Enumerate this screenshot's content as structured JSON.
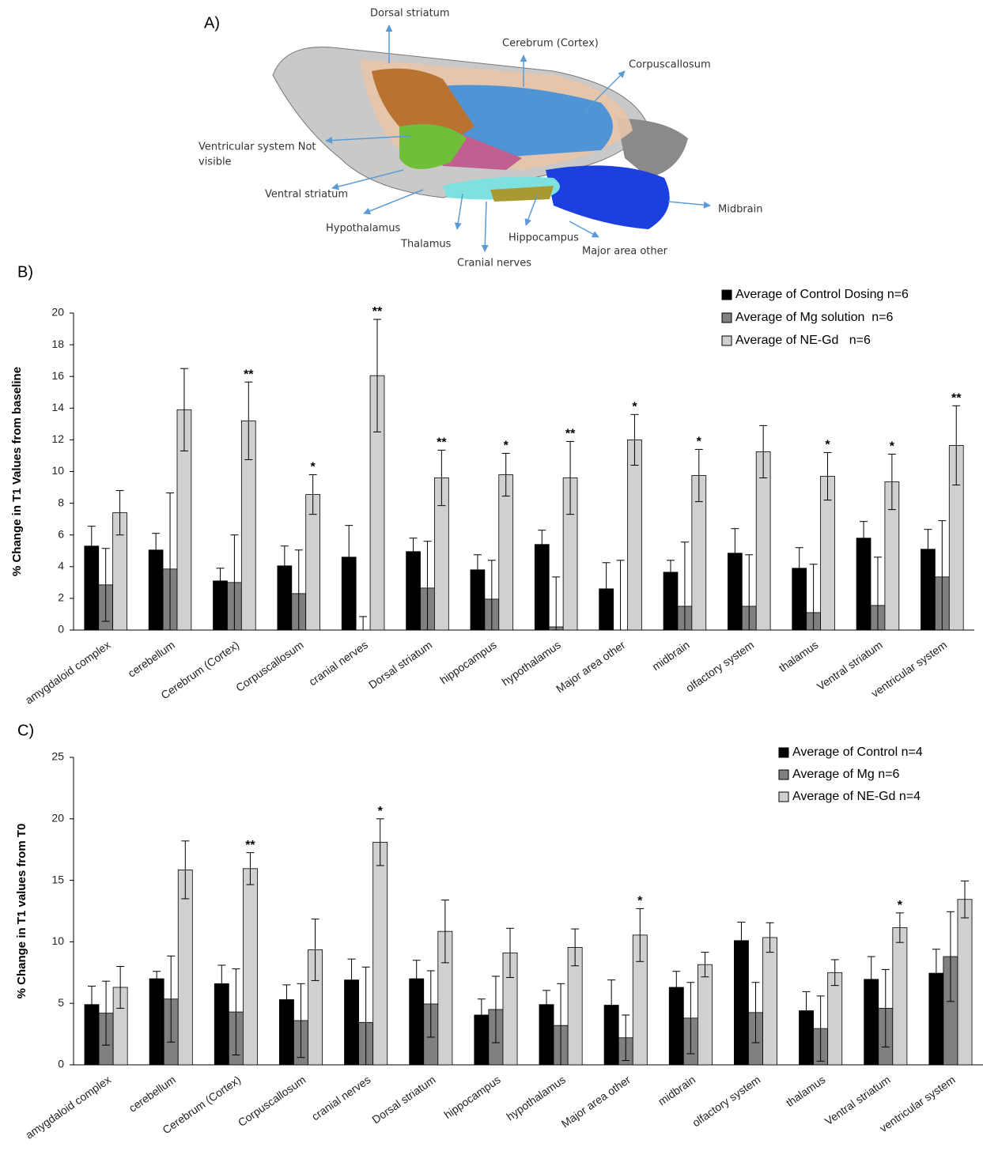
{
  "panel_a": {
    "label": "A)",
    "labels": [
      "Dorsal striatum",
      "Cerebrum (Cortex)",
      "Corpuscallosum",
      [
        "Ventricular system Not",
        "visible"
      ],
      "Ventral striatum",
      "Hypothalamus",
      "Thalamus",
      "Cranial nerves",
      "Hippocampus",
      "Major area other",
      "Midbrain"
    ]
  },
  "chart_data": [
    {
      "type": "bar",
      "panel_label": "B)",
      "ylabel": "% Change in T1 Values from baseline",
      "categories": [
        "amygdaloid complex",
        "cerebellum",
        "Cerebrum (Cortex)",
        "Corpuscallosum",
        "cranial nerves",
        "Dorsal striatum",
        "hippocampus",
        "hypothalamus",
        "Major area other",
        "midbrain",
        "olfactory system",
        "thalamus",
        "Ventral striatum",
        "ventricular system"
      ],
      "series": [
        {
          "name": "Average of Control Dosing n=6",
          "color": "#000000",
          "values": [
            5.3,
            5.05,
            3.1,
            4.05,
            4.6,
            4.95,
            3.8,
            5.4,
            2.6,
            3.65,
            4.85,
            3.9,
            5.8,
            5.1
          ],
          "errors": [
            1.25,
            1.05,
            0.8,
            1.25,
            2.0,
            0.85,
            0.95,
            0.9,
            1.65,
            0.75,
            1.55,
            1.3,
            1.05,
            1.25
          ]
        },
        {
          "name": "Average of Mg solution  n=6",
          "color": "#808080",
          "values": [
            2.85,
            3.85,
            3.0,
            2.3,
            0,
            2.65,
            1.95,
            0.2,
            0,
            1.5,
            1.5,
            1.1,
            1.55,
            3.35
          ],
          "errors": [
            2.3,
            4.8,
            3.0,
            2.75,
            0.85,
            2.95,
            2.45,
            3.15,
            4.4,
            4.05,
            3.25,
            3.05,
            3.05,
            3.55
          ]
        },
        {
          "name": "Average of NE-Gd   n=6",
          "color": "#d0d0d0",
          "values": [
            7.4,
            13.9,
            13.2,
            8.55,
            16.05,
            9.6,
            9.8,
            9.6,
            12.0,
            9.75,
            11.25,
            9.7,
            9.35,
            11.65
          ],
          "errors": [
            1.4,
            2.6,
            2.45,
            1.25,
            3.55,
            1.75,
            1.35,
            2.3,
            1.6,
            1.65,
            1.65,
            1.5,
            1.75,
            2.5
          ]
        }
      ],
      "significance": [
        null,
        null,
        "**",
        "*",
        "**",
        "**",
        "*",
        "**",
        "*",
        "*",
        null,
        "*",
        "*",
        "**"
      ],
      "ylim": [
        0,
        20
      ],
      "yticks": [
        0,
        2,
        4,
        6,
        8,
        10,
        12,
        14,
        16,
        18,
        20
      ],
      "legend": "top-right"
    },
    {
      "type": "bar",
      "panel_label": "C)",
      "ylabel": "% Change in T1 values from T0",
      "categories": [
        "amygdaloid complex",
        "cerebellum",
        "Cerebrum (Cortex)",
        "Corpuscallosum",
        "cranial nerves",
        "Dorsal striatum",
        "hippocampus",
        "hypothalamus",
        "Major area other",
        "midbrain",
        "olfactory system",
        "thalamus",
        "Ventral striatum",
        "ventricular system"
      ],
      "series": [
        {
          "name": "Average of Control n=4",
          "color": "#000000",
          "values": [
            4.9,
            7.0,
            6.6,
            5.3,
            6.9,
            7.0,
            4.05,
            4.9,
            4.85,
            6.3,
            10.1,
            4.4,
            6.95,
            7.45
          ],
          "errors": [
            1.5,
            0.6,
            1.5,
            1.2,
            1.7,
            1.5,
            1.3,
            1.15,
            2.05,
            1.3,
            1.5,
            1.55,
            1.85,
            1.95
          ]
        },
        {
          "name": "Average of Mg n=6",
          "color": "#808080",
          "values": [
            4.2,
            5.35,
            4.3,
            3.6,
            3.45,
            4.95,
            4.5,
            3.2,
            2.2,
            3.8,
            4.25,
            2.95,
            4.6,
            8.8
          ],
          "errors": [
            2.6,
            3.5,
            3.5,
            3.0,
            4.5,
            2.7,
            2.7,
            3.4,
            1.85,
            2.9,
            2.45,
            2.65,
            3.15,
            3.65
          ]
        },
        {
          "name": "Average of NE-Gd n=4",
          "color": "#d0d0d0",
          "values": [
            6.3,
            15.85,
            15.95,
            9.35,
            18.1,
            10.85,
            9.1,
            9.55,
            10.55,
            8.15,
            10.35,
            7.5,
            11.15,
            13.45
          ],
          "errors": [
            1.7,
            2.35,
            1.3,
            2.5,
            1.9,
            2.55,
            2.0,
            1.5,
            2.15,
            1.0,
            1.2,
            1.05,
            1.2,
            1.5
          ]
        }
      ],
      "significance": [
        null,
        null,
        "**",
        null,
        "*",
        null,
        null,
        null,
        "*",
        null,
        null,
        null,
        "*",
        null
      ],
      "ylim": [
        0,
        25
      ],
      "yticks": [
        0,
        5,
        10,
        15,
        20,
        25
      ],
      "legend": "top-right"
    }
  ]
}
